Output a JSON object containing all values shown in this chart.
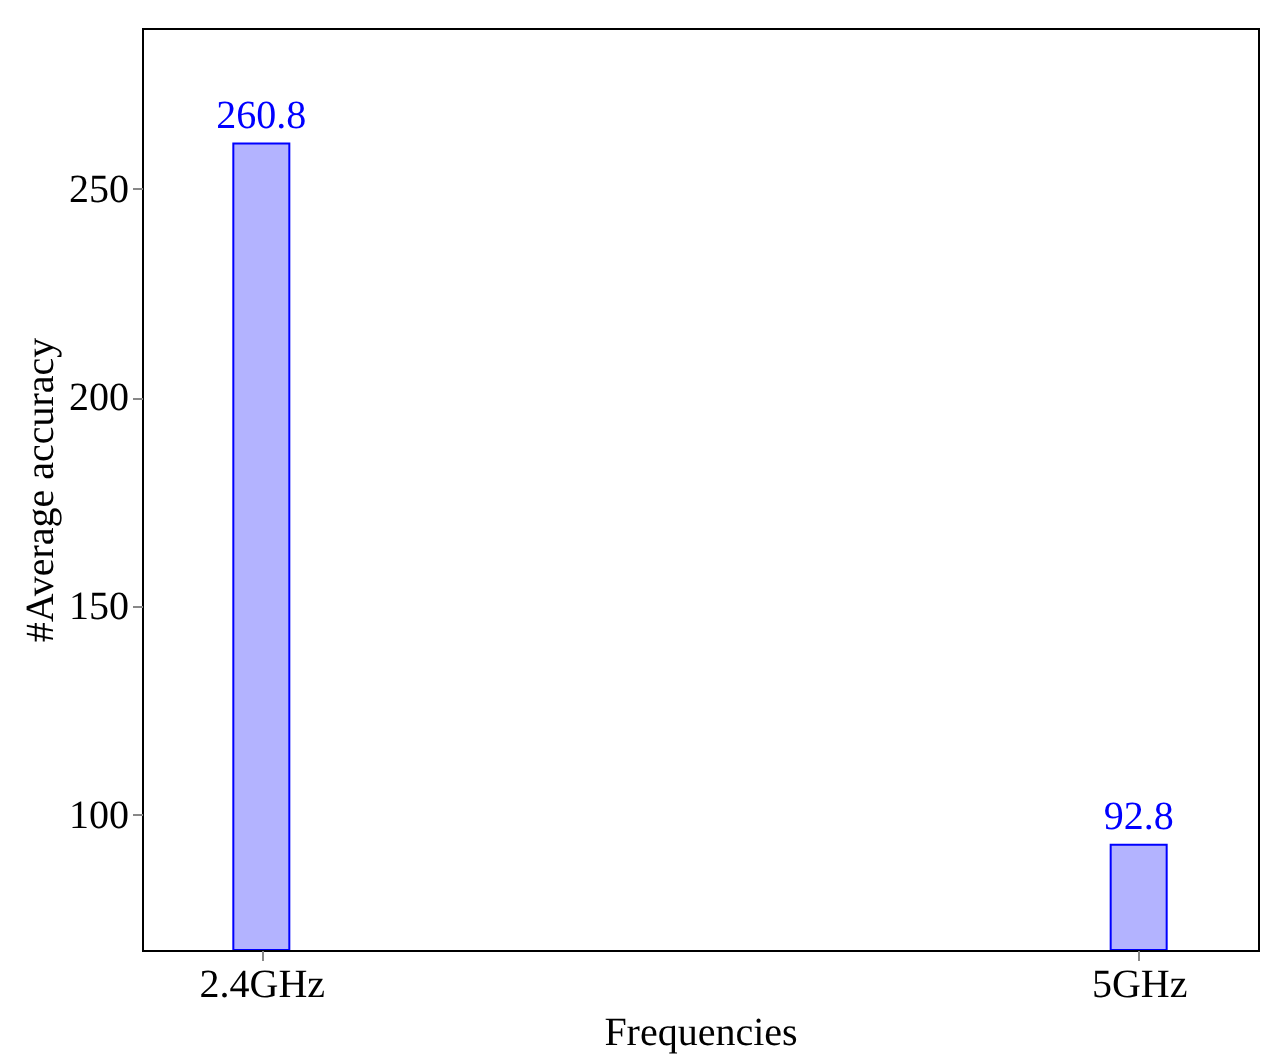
{
  "chart_data": {
    "type": "bar",
    "xlabel": "Frequencies",
    "ylabel": "#Average accuracy",
    "categories": [
      "2.4GHz",
      "5GHz"
    ],
    "series": [
      {
        "color": "#b3b3ff",
        "values": [
          260.8,
          92.8
        ]
      }
    ],
    "ylim": [
      67.6,
      288.5
    ],
    "yticks": [
      100,
      150,
      200,
      250
    ],
    "data_labels": true,
    "grid": false
  }
}
